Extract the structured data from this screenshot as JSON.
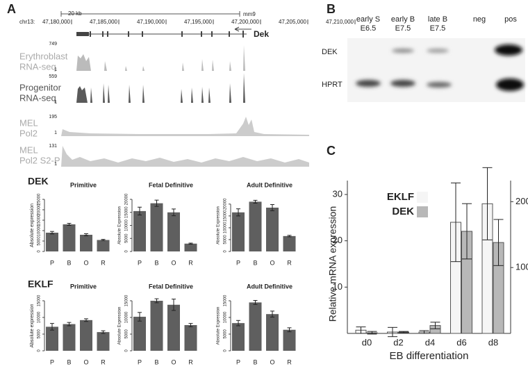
{
  "panels": [
    "A",
    "B",
    "C"
  ],
  "browser": {
    "scale": "20 kb",
    "assembly": "mm9",
    "chrom": "chr13:",
    "coords": [
      "47,180,000",
      "47,185,000",
      "47,190,000",
      "47,195,000",
      "47,200,000",
      "47,205,000",
      "47,210,000"
    ],
    "gene": "Dek",
    "tracks": [
      {
        "label": [
          "Erythroblast",
          "RNA-seq"
        ],
        "max": "749",
        "min": "1"
      },
      {
        "label": [
          "Progenitor",
          "RNA-seq"
        ],
        "max": "559",
        "min": "1"
      },
      {
        "label": [
          "MEL",
          "Pol2"
        ],
        "max": "195",
        "min": "1"
      },
      {
        "label": [
          "MEL",
          "Pol2 S2-P"
        ],
        "max": "131",
        "min": "1"
      }
    ]
  },
  "gel": {
    "lanes": [
      [
        "early S",
        "E6.5"
      ],
      [
        "early B",
        "E7.5"
      ],
      [
        "late B",
        "E7.5"
      ],
      [
        "neg"
      ],
      [
        "pos"
      ]
    ],
    "rows": [
      "DEK",
      "HPRT"
    ]
  },
  "row_labels": [
    "DEK",
    "EKLF"
  ],
  "chart_data": [
    {
      "type": "bar",
      "title": "Primitive",
      "ylabel": "Absolute expression",
      "categories": [
        "P",
        "B",
        "O",
        "R"
      ],
      "values": [
        9000,
        13000,
        8000,
        5500
      ],
      "errors": [
        600,
        500,
        500,
        300
      ],
      "ylim": [
        0,
        25000
      ],
      "yticks": [
        0,
        5000,
        10000,
        15000,
        20000,
        25000
      ],
      "color": "#5f5f5f"
    },
    {
      "type": "bar",
      "title": "Fetal Definitive",
      "ylabel": "Absolute Expression",
      "categories": [
        "P",
        "B",
        "O",
        "R"
      ],
      "values": [
        15500,
        18500,
        15000,
        3000
      ],
      "errors": [
        1500,
        1200,
        1300,
        200
      ],
      "ylim": [
        0,
        20000
      ],
      "yticks": [
        0,
        5000,
        10000,
        15000,
        20000
      ],
      "color": "#5f5f5f"
    },
    {
      "type": "bar",
      "title": "Adult Definitive",
      "ylabel": "Absolute Expression",
      "categories": [
        "P",
        "B",
        "O",
        "R"
      ],
      "values": [
        16500,
        21000,
        18500,
        6500
      ],
      "errors": [
        1500,
        600,
        1300,
        300
      ],
      "ylim": [
        0,
        22000
      ],
      "yticks": [
        0,
        5000,
        10000,
        15000,
        20000
      ],
      "color": "#5f5f5f"
    },
    {
      "type": "bar",
      "title": "Primitive",
      "ylabel": "Absolute expression",
      "categories": [
        "P",
        "B",
        "O",
        "R"
      ],
      "values": [
        7200,
        8000,
        9200,
        5600
      ],
      "errors": [
        1000,
        500,
        400,
        400
      ],
      "ylim": [
        0,
        15000
      ],
      "yticks": [
        0,
        5000,
        10000,
        15000
      ],
      "color": "#5f5f5f"
    },
    {
      "type": "bar",
      "title": "Fetal Definitive",
      "ylabel": "Absolute Expression",
      "categories": [
        "P",
        "B",
        "O",
        "R"
      ],
      "values": [
        10200,
        15000,
        13800,
        7700
      ],
      "errors": [
        1300,
        600,
        1700,
        500
      ],
      "ylim": [
        0,
        15000
      ],
      "yticks": [
        0,
        5000,
        10000,
        15000
      ],
      "color": "#5f5f5f"
    },
    {
      "type": "bar",
      "title": "Adult Definitive",
      "ylabel": "Absolute Expression",
      "categories": [
        "P",
        "B",
        "O",
        "R"
      ],
      "values": [
        8300,
        14500,
        11000,
        6300
      ],
      "errors": [
        800,
        600,
        900,
        600
      ],
      "ylim": [
        0,
        15000
      ],
      "yticks": [
        0,
        5000,
        10000,
        15000
      ],
      "color": "#5f5f5f"
    },
    {
      "type": "bar",
      "xlabel": "EB differentiation",
      "ylabel": "Relative mRNA expression",
      "categories": [
        "d0",
        "d2",
        "d4",
        "d6",
        "d8"
      ],
      "ylim": [
        0,
        33
      ],
      "yticks": [
        10,
        20,
        30
      ],
      "y2lim": [
        0,
        232
      ],
      "y2ticks": [
        100,
        200
      ],
      "legend": "top-left",
      "series": [
        {
          "name": "EKLF",
          "color": "#f5f5f5",
          "values": [
            0.7,
            0.3,
            0.3,
            24,
            28
          ],
          "errors": [
            0.7,
            1,
            0.3,
            8.5,
            7.8
          ]
        },
        {
          "name": "DEK",
          "color": "#b8b8b8",
          "axis": "y2",
          "values": [
            1,
            2,
            12,
            155,
            138
          ],
          "errors": [
            2,
            1,
            5,
            42,
            35
          ]
        }
      ]
    }
  ]
}
